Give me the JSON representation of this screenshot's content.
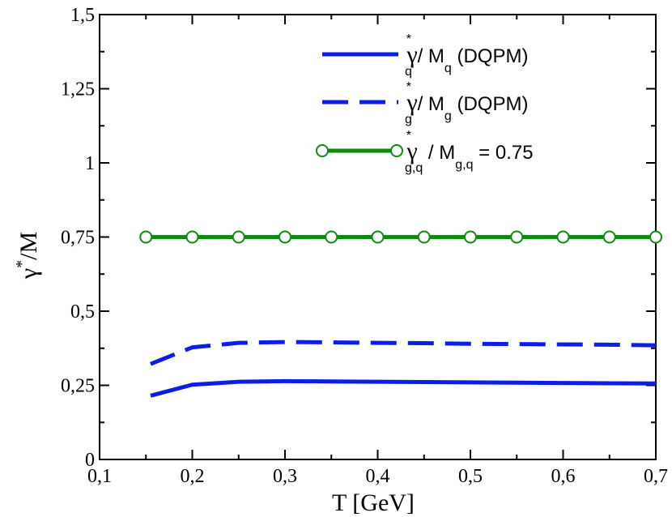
{
  "chart_data": {
    "type": "line",
    "title": "",
    "xlabel": "T [GeV]",
    "ylabel": "γ*/M",
    "xlim": [
      0.1,
      0.7
    ],
    "ylim": [
      0,
      1.5
    ],
    "xticks": [
      0.1,
      0.2,
      0.3,
      0.4,
      0.5,
      0.6,
      0.7
    ],
    "xtick_labels": [
      "0,1",
      "0,2",
      "0,3",
      "0,4",
      "0,5",
      "0,6",
      "0,7"
    ],
    "yticks": [
      0,
      0.25,
      0.5,
      0.75,
      1,
      1.25,
      1.5
    ],
    "ytick_labels": [
      "0",
      "0,25",
      "0,5",
      "0,75",
      "1",
      "1,25",
      "1,5"
    ],
    "grid": false,
    "legend_position": "top-right",
    "series": [
      {
        "name": "γ*q / Mq (DQPM)",
        "style": "solid",
        "color": "#0b1ee6",
        "x": [
          0.155,
          0.2,
          0.25,
          0.3,
          0.35,
          0.4,
          0.45,
          0.5,
          0.55,
          0.6,
          0.65,
          0.7
        ],
        "y": [
          0.215,
          0.252,
          0.262,
          0.264,
          0.263,
          0.262,
          0.261,
          0.26,
          0.259,
          0.258,
          0.257,
          0.256
        ]
      },
      {
        "name": "γ*g / Mg (DQPM)",
        "style": "dashed",
        "color": "#0b1ee6",
        "x": [
          0.155,
          0.2,
          0.25,
          0.3,
          0.35,
          0.4,
          0.45,
          0.5,
          0.55,
          0.6,
          0.65,
          0.7
        ],
        "y": [
          0.322,
          0.378,
          0.393,
          0.396,
          0.395,
          0.393,
          0.392,
          0.39,
          0.389,
          0.388,
          0.387,
          0.385
        ]
      },
      {
        "name": "γ*g,q / Mg,q = 0.75",
        "style": "solid-markers",
        "color": "#0e8a12",
        "x": [
          0.15,
          0.2,
          0.25,
          0.3,
          0.35,
          0.4,
          0.45,
          0.5,
          0.55,
          0.6,
          0.65,
          0.7
        ],
        "y": [
          0.75,
          0.75,
          0.75,
          0.75,
          0.75,
          0.75,
          0.75,
          0.75,
          0.75,
          0.75,
          0.75,
          0.75
        ]
      }
    ],
    "legend": [
      {
        "gamma": "γ",
        "star": "*",
        "sub1": "q",
        "mid": " / M",
        "sub2": "q",
        "tail": "  (DQPM)"
      },
      {
        "gamma": "γ",
        "star": "*",
        "sub1": "g",
        "mid": " / M",
        "sub2": "g",
        "tail": "  (DQPM)"
      },
      {
        "gamma": "γ",
        "star": "*",
        "sub1": "g,q",
        "mid": " / M",
        "sub2": "g,q",
        "tail": " = 0.75"
      }
    ],
    "ylabel_parts": {
      "gamma": "γ",
      "star": "*",
      "rest": "/M"
    }
  }
}
